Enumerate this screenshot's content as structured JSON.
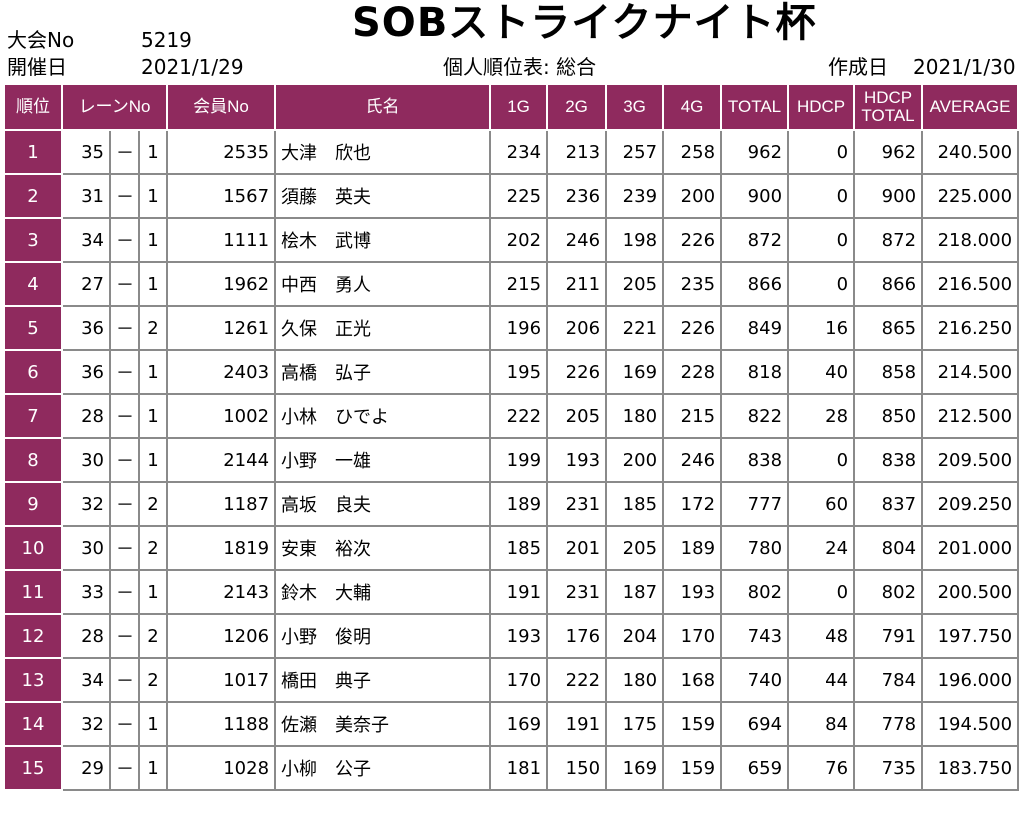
{
  "header": {
    "tournament_no_label": "大会No",
    "tournament_no": "5219",
    "date_label": "開催日",
    "date": "2021/1/29",
    "title": "SOBストライクナイト杯",
    "subtitle": "個人順位表: 総合",
    "created_label": "作成日",
    "created": "2021/1/30"
  },
  "columns": {
    "rank": "順位",
    "lane": "レーンNo",
    "member": "会員No",
    "name": "氏名",
    "g1": "1G",
    "g2": "2G",
    "g3": "3G",
    "g4": "4G",
    "total": "TOTAL",
    "hdcp": "HDCP",
    "hdcp_total_1": "HDCP",
    "hdcp_total_2": "TOTAL",
    "average": "AVERAGE"
  },
  "rows": [
    {
      "rank": "1",
      "lane": "35",
      "dash": "－",
      "box": "1",
      "member": "2535",
      "name": "大津　欣也",
      "g1": "234",
      "g2": "213",
      "g3": "257",
      "g4": "258",
      "total": "962",
      "hdcp": "0",
      "hdcp_total": "962",
      "average": "240.500"
    },
    {
      "rank": "2",
      "lane": "31",
      "dash": "－",
      "box": "1",
      "member": "1567",
      "name": "須藤　英夫",
      "g1": "225",
      "g2": "236",
      "g3": "239",
      "g4": "200",
      "total": "900",
      "hdcp": "0",
      "hdcp_total": "900",
      "average": "225.000"
    },
    {
      "rank": "3",
      "lane": "34",
      "dash": "－",
      "box": "1",
      "member": "1111",
      "name": "桧木　武博",
      "g1": "202",
      "g2": "246",
      "g3": "198",
      "g4": "226",
      "total": "872",
      "hdcp": "0",
      "hdcp_total": "872",
      "average": "218.000"
    },
    {
      "rank": "4",
      "lane": "27",
      "dash": "－",
      "box": "1",
      "member": "1962",
      "name": "中西　勇人",
      "g1": "215",
      "g2": "211",
      "g3": "205",
      "g4": "235",
      "total": "866",
      "hdcp": "0",
      "hdcp_total": "866",
      "average": "216.500"
    },
    {
      "rank": "5",
      "lane": "36",
      "dash": "－",
      "box": "2",
      "member": "1261",
      "name": "久保　正光",
      "g1": "196",
      "g2": "206",
      "g3": "221",
      "g4": "226",
      "total": "849",
      "hdcp": "16",
      "hdcp_total": "865",
      "average": "216.250"
    },
    {
      "rank": "6",
      "lane": "36",
      "dash": "－",
      "box": "1",
      "member": "2403",
      "name": "高橋　弘子",
      "g1": "195",
      "g2": "226",
      "g3": "169",
      "g4": "228",
      "total": "818",
      "hdcp": "40",
      "hdcp_total": "858",
      "average": "214.500"
    },
    {
      "rank": "7",
      "lane": "28",
      "dash": "－",
      "box": "1",
      "member": "1002",
      "name": "小林　ひでよ",
      "g1": "222",
      "g2": "205",
      "g3": "180",
      "g4": "215",
      "total": "822",
      "hdcp": "28",
      "hdcp_total": "850",
      "average": "212.500"
    },
    {
      "rank": "8",
      "lane": "30",
      "dash": "－",
      "box": "1",
      "member": "2144",
      "name": "小野　一雄",
      "g1": "199",
      "g2": "193",
      "g3": "200",
      "g4": "246",
      "total": "838",
      "hdcp": "0",
      "hdcp_total": "838",
      "average": "209.500"
    },
    {
      "rank": "9",
      "lane": "32",
      "dash": "－",
      "box": "2",
      "member": "1187",
      "name": "高坂　良夫",
      "g1": "189",
      "g2": "231",
      "g3": "185",
      "g4": "172",
      "total": "777",
      "hdcp": "60",
      "hdcp_total": "837",
      "average": "209.250"
    },
    {
      "rank": "10",
      "lane": "30",
      "dash": "－",
      "box": "2",
      "member": "1819",
      "name": "安東　裕次",
      "g1": "185",
      "g2": "201",
      "g3": "205",
      "g4": "189",
      "total": "780",
      "hdcp": "24",
      "hdcp_total": "804",
      "average": "201.000"
    },
    {
      "rank": "11",
      "lane": "33",
      "dash": "－",
      "box": "1",
      "member": "2143",
      "name": "鈴木　大輔",
      "g1": "191",
      "g2": "231",
      "g3": "187",
      "g4": "193",
      "total": "802",
      "hdcp": "0",
      "hdcp_total": "802",
      "average": "200.500"
    },
    {
      "rank": "12",
      "lane": "28",
      "dash": "－",
      "box": "2",
      "member": "1206",
      "name": "小野　俊明",
      "g1": "193",
      "g2": "176",
      "g3": "204",
      "g4": "170",
      "total": "743",
      "hdcp": "48",
      "hdcp_total": "791",
      "average": "197.750"
    },
    {
      "rank": "13",
      "lane": "34",
      "dash": "－",
      "box": "2",
      "member": "1017",
      "name": "橋田　典子",
      "g1": "170",
      "g2": "222",
      "g3": "180",
      "g4": "168",
      "total": "740",
      "hdcp": "44",
      "hdcp_total": "784",
      "average": "196.000"
    },
    {
      "rank": "14",
      "lane": "32",
      "dash": "－",
      "box": "1",
      "member": "1188",
      "name": "佐瀬　美奈子",
      "g1": "169",
      "g2": "191",
      "g3": "175",
      "g4": "159",
      "total": "694",
      "hdcp": "84",
      "hdcp_total": "778",
      "average": "194.500"
    },
    {
      "rank": "15",
      "lane": "29",
      "dash": "－",
      "box": "1",
      "member": "1028",
      "name": "小柳　公子",
      "g1": "181",
      "g2": "150",
      "g3": "169",
      "g4": "159",
      "total": "659",
      "hdcp": "76",
      "hdcp_total": "735",
      "average": "183.750"
    }
  ]
}
